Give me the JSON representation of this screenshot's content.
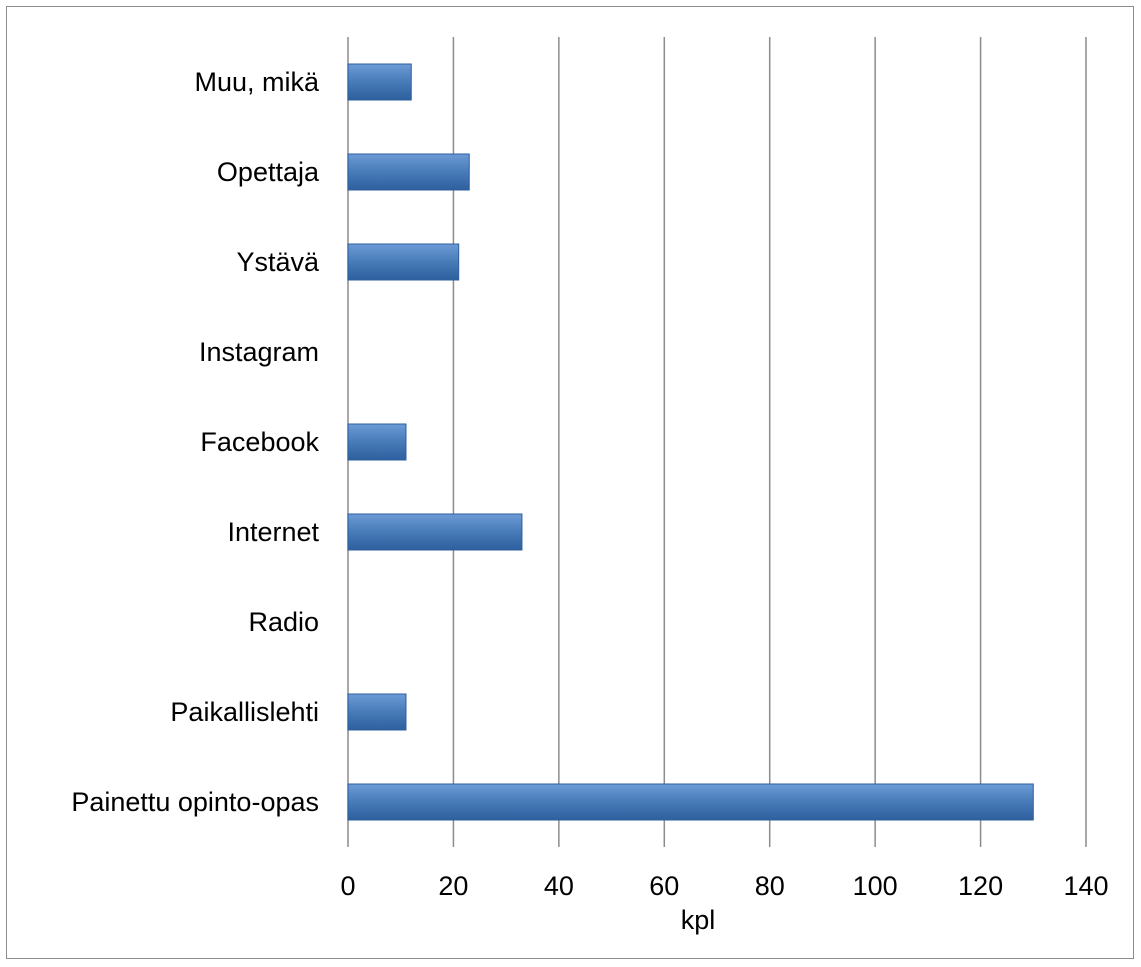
{
  "chart_data": {
    "type": "bar",
    "orientation": "horizontal",
    "categories": [
      "Painettu opinto-opas",
      "Paikallislehti",
      "Radio",
      "Internet",
      "Facebook",
      "Instagram",
      "Ystävä",
      "Opettaja",
      "Muu, mikä"
    ],
    "values": [
      130,
      11,
      0,
      33,
      11,
      0,
      21,
      23,
      12
    ],
    "title": "",
    "xlabel": "kpl",
    "ylabel": "",
    "xlim": [
      0,
      140
    ],
    "x_ticks": [
      "0",
      "20",
      "40",
      "60",
      "80",
      "100",
      "120",
      "140"
    ],
    "grid": "vertical",
    "legend": "none",
    "bar_color": "#4a7ebb",
    "bar_color_dark": "#2e5f9e",
    "bar_color_light": "#6d9bd6",
    "gridline_color": "#8c8c8c"
  }
}
